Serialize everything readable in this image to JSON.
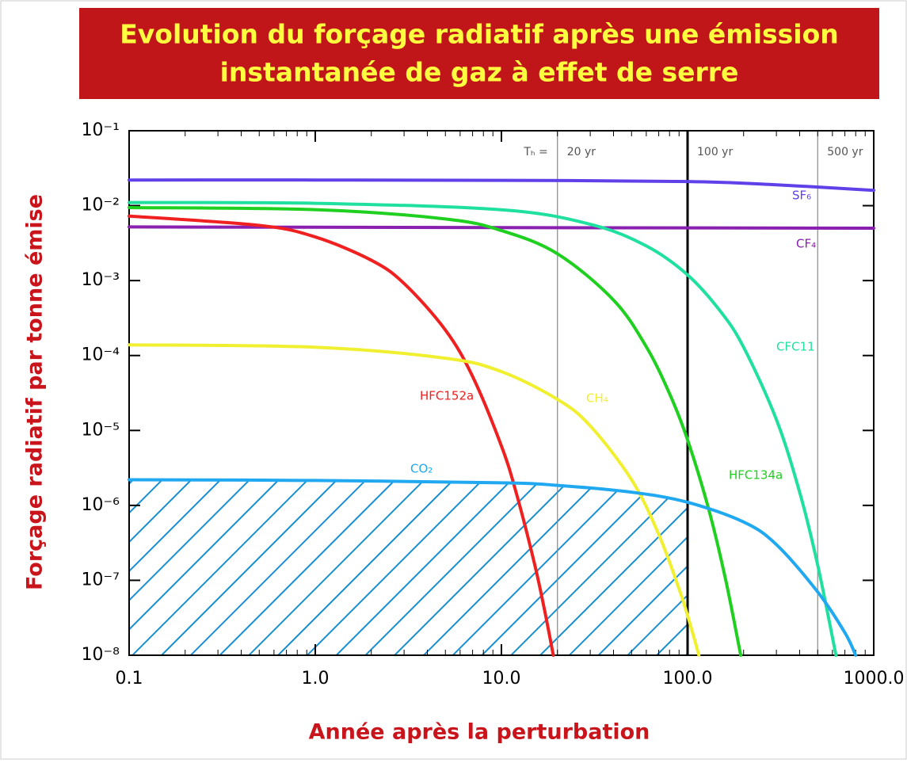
{
  "chart_data": {
    "type": "line",
    "title": [
      "Evolution du forçage radiatif après une émission",
      "instantanée de gaz à effet de serre"
    ],
    "xlabel": "Année après la perturbation",
    "ylabel": "Forçage radiatif par tonne émise",
    "log_x": true,
    "log_y": true,
    "xlim": [
      0.1,
      1000
    ],
    "ylim": [
      1e-08,
      0.1
    ],
    "xticks": [
      0.1,
      {
        "value": 1,
        "label": "1.0"
      },
      {
        "value": 10,
        "label": "10.0"
      },
      {
        "value": 100,
        "label": "100.0"
      },
      {
        "value": 1000,
        "label": "1000.0"
      }
    ],
    "yticks": [
      {
        "value": 1e-08,
        "label": "10⁻⁸"
      },
      {
        "value": 1e-07,
        "label": "10⁻⁷"
      },
      {
        "value": 1e-06,
        "label": "10⁻⁶"
      },
      {
        "value": 1e-05,
        "label": "10⁻⁵"
      },
      {
        "value": 0.0001,
        "label": "10⁻⁴"
      },
      {
        "value": 0.001,
        "label": "10⁻³"
      },
      {
        "value": 0.01,
        "label": "10⁻²"
      },
      {
        "value": 0.1,
        "label": "10⁻¹"
      }
    ],
    "horizon_label": "Tₕ =",
    "vlines": [
      {
        "value": 20,
        "label": "20 yr",
        "color": "#888888"
      },
      {
        "value": 100,
        "label": "100 yr",
        "color": "#000000"
      },
      {
        "value": 500,
        "label": "500 yr",
        "color": "#888888"
      }
    ],
    "series": [
      {
        "name": "SF₆",
        "color": "#6040e8",
        "x": [
          0.1,
          1,
          10,
          100,
          300,
          1000
        ],
        "values": [
          0.022,
          0.022,
          0.0218,
          0.021,
          0.019,
          0.016
        ]
      },
      {
        "name": "CF₄",
        "color": "#8a20b0",
        "x": [
          0.1,
          1000
        ],
        "values": [
          0.0052,
          0.005
        ]
      },
      {
        "name": "CFC11",
        "color": "#20e0a0",
        "x": [
          0.1,
          1,
          10,
          30,
          60,
          100,
          150,
          200,
          300,
          400,
          500,
          627
        ],
        "values": [
          0.011,
          0.01076,
          0.00881,
          0.00565,
          0.0029,
          0.00119,
          0.00039,
          0.000129,
          1.4e-05,
          1.5e-06,
          1.6e-07,
          1e-08
        ]
      },
      {
        "name": "HFC134a",
        "color": "#20d020",
        "x": [
          0.1,
          1,
          5,
          10,
          20,
          40,
          60,
          80,
          100,
          130,
          160,
          193
        ],
        "values": [
          0.00943,
          0.00885,
          0.00665,
          0.00465,
          0.00228,
          0.00055,
          0.000131,
          3.1e-05,
          7.5e-06,
          8.8e-07,
          1.03e-07,
          1e-08
        ]
      },
      {
        "name": "HFC152a",
        "color": "#f02020",
        "x": [
          0.1,
          0.5,
          1,
          2,
          3,
          5,
          7,
          10,
          12,
          15,
          17,
          19
        ],
        "values": [
          0.00726,
          0.00546,
          0.00382,
          0.00187,
          0.000915,
          0.000219,
          5.26e-05,
          6.2e-06,
          1.48e-06,
          1.73e-07,
          4.15e-08,
          1e-08
        ]
      },
      {
        "name": "CH₄",
        "color": "#f0f030",
        "x": [
          0.1,
          1,
          5,
          10,
          20,
          30,
          50,
          70,
          90,
          100,
          110,
          115
        ],
        "values": [
          0.000139,
          0.000129,
          9.2e-05,
          6.1e-05,
          2.6e-05,
          1.15e-05,
          2.2e-06,
          4.1e-07,
          7.7e-08,
          3.4e-08,
          1.5e-08,
          1e-08
        ]
      },
      {
        "name": "CO₂",
        "color": "#20a8f0",
        "x": [
          0.1,
          1,
          10,
          20,
          50,
          100,
          200,
          300,
          500,
          700,
          800
        ],
        "values": [
          2.2e-06,
          2.15e-06,
          2e-06,
          1.85e-06,
          1.5e-06,
          1.1e-06,
          6e-07,
          3e-07,
          7e-08,
          2e-08,
          1e-08
        ]
      }
    ]
  }
}
